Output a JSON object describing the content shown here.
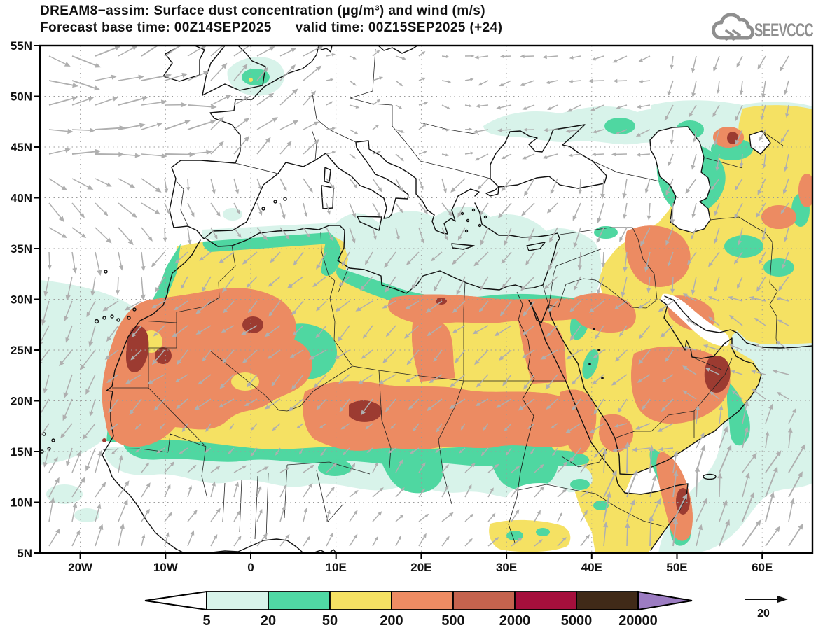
{
  "header": {
    "title_line1": "DREAM8−assim: Surface dust concentration (μg/m³) and wind (m/s)",
    "title_line2": "Forecast base time: 00Z14SEP2025      valid time: 00Z15SEP2025 (+24)",
    "logo_text": "SEEVCCC"
  },
  "map": {
    "lat_tick_labels": [
      "55N",
      "50N",
      "45N",
      "40N",
      "35N",
      "30N",
      "25N",
      "20N",
      "15N",
      "10N",
      "5N"
    ],
    "lon_tick_labels": [
      "20W",
      "10W",
      "0",
      "10E",
      "20E",
      "30E",
      "40E",
      "50E",
      "60E"
    ]
  },
  "colorbar": {
    "tick_labels": [
      "5",
      "20",
      "50",
      "200",
      "500",
      "2000",
      "5000",
      "20000"
    ],
    "segment_colors": [
      "#D8F3EA",
      "#50D8A4",
      "#F5E163",
      "#EE8C63",
      "#C4634E",
      "#A50F3C",
      "#402A18"
    ],
    "below_min_color": "#FFFFFF",
    "above_max_color": "#9C7CC2"
  },
  "wind_legend": {
    "reference_value": "20"
  },
  "palette": {
    "arrow_color": "#AFAFAF",
    "coast_color": "#111111",
    "logo_color": "#8F8F8F"
  }
}
